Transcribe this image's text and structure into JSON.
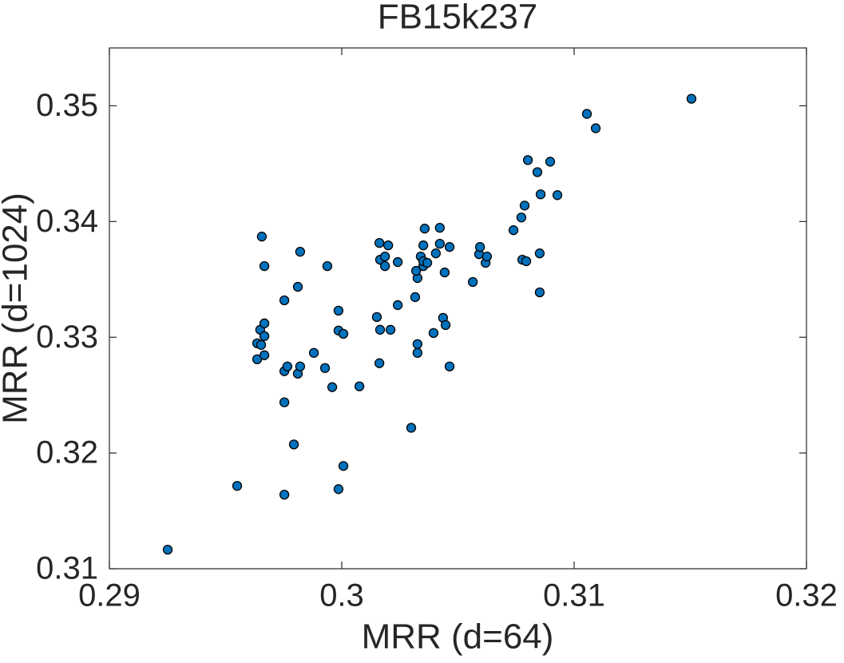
{
  "chart_data": {
    "type": "scatter",
    "title": "FB15k237",
    "x_label": "MRR (d=64)",
    "y_label": "MRR (d=1024)",
    "xlim": [
      0.29,
      0.32
    ],
    "ylim": [
      0.31,
      0.355
    ],
    "xticks": [
      0.29,
      0.3,
      0.31,
      0.32
    ],
    "yticks": [
      0.31,
      0.32,
      0.33,
      0.34,
      0.35
    ],
    "grid": false,
    "color": "#0072bd",
    "x": [
      0.29251,
      0.2955,
      0.29753,
      0.29986,
      0.30007,
      0.29794,
      0.29753,
      0.29959,
      0.30076,
      0.30299,
      0.29753,
      0.29766,
      0.29811,
      0.29821,
      0.2988,
      0.29928,
      0.29636,
      0.29667,
      0.29636,
      0.29653,
      0.29649,
      0.29667,
      0.29667,
      0.29753,
      0.29811,
      0.29821,
      0.29667,
      0.29656,
      0.29938,
      0.29986,
      0.29986,
      0.30007,
      0.30162,
      0.30151,
      0.30165,
      0.3021,
      0.30241,
      0.30326,
      0.30326,
      0.30316,
      0.30326,
      0.3032,
      0.30351,
      0.3034,
      0.30351,
      0.30368,
      0.30351,
      0.30357,
      0.30162,
      0.30165,
      0.30186,
      0.30186,
      0.302,
      0.30241,
      0.30405,
      0.30422,
      0.30422,
      0.30464,
      0.30443,
      0.30436,
      0.30447,
      0.30395,
      0.30464,
      0.30564,
      0.30591,
      0.30595,
      0.30619,
      0.30625,
      0.30739,
      0.30773,
      0.30787,
      0.30777,
      0.30794,
      0.30801,
      0.30842,
      0.30856,
      0.30852,
      0.30852,
      0.30897,
      0.30928,
      0.31055,
      0.31093,
      0.31505
    ],
    "y": [
      0.31165,
      0.31716,
      0.3164,
      0.31688,
      0.31888,
      0.32074,
      0.32438,
      0.32569,
      0.32576,
      0.32218,
      0.32707,
      0.32748,
      0.32686,
      0.32748,
      0.32865,
      0.32734,
      0.3281,
      0.32845,
      0.32948,
      0.32934,
      0.33065,
      0.3301,
      0.3312,
      0.33319,
      0.33436,
      0.33739,
      0.33615,
      0.3387,
      0.33615,
      0.3323,
      0.33058,
      0.3303,
      0.32776,
      0.33175,
      0.33065,
      0.33065,
      0.33278,
      0.32941,
      0.32865,
      0.33347,
      0.33512,
      0.33574,
      0.33615,
      0.33698,
      0.33657,
      0.33643,
      0.33794,
      0.33939,
      0.33815,
      0.3367,
      0.33698,
      0.33615,
      0.33794,
      0.3365,
      0.33725,
      0.33808,
      0.33946,
      0.3378,
      0.3356,
      0.33168,
      0.33106,
      0.33037,
      0.32748,
      0.33478,
      0.33718,
      0.3378,
      0.33643,
      0.33698,
      0.33925,
      0.34035,
      0.34138,
      0.3367,
      0.33657,
      0.34531,
      0.34427,
      0.34235,
      0.33725,
      0.33388,
      0.34517,
      0.34228,
      0.3493,
      0.34806,
      0.35061
    ]
  }
}
